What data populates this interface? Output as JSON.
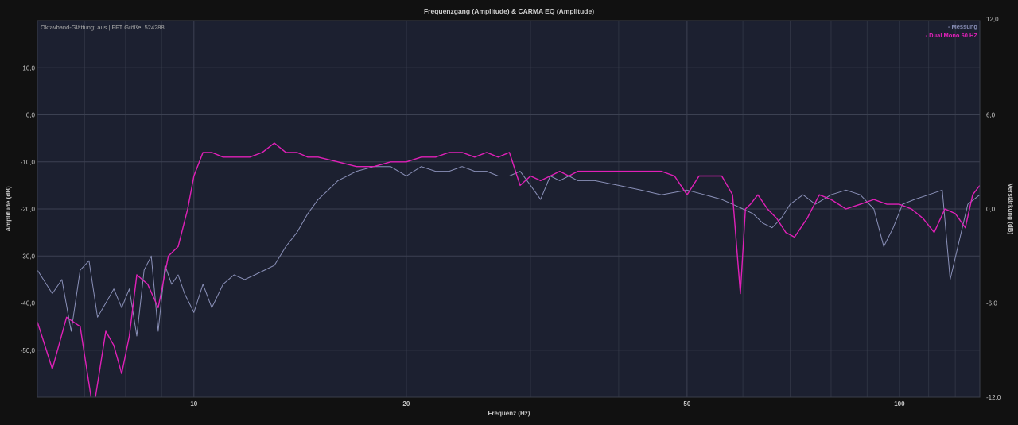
{
  "chart_data": {
    "type": "line",
    "title": "Frequenzgang (Amplitude) & CARMA EQ (Amplitude)",
    "info": "Oktavband-Glättung: aus | FFT Größe: 524288",
    "xlabel": "Frequenz (Hz)",
    "ylabel": "Amplitude (dB)",
    "y2label": "Verstärkung (dB)",
    "xscale": "log",
    "xlim": [
      6,
      130
    ],
    "ylim": [
      -60,
      20
    ],
    "y2lim": [
      -12,
      12
    ],
    "grid": true,
    "legend_position": "top-right",
    "xticks": [
      {
        "value": 10,
        "label": "10"
      },
      {
        "value": 20,
        "label": "20"
      },
      {
        "value": 50,
        "label": "50"
      },
      {
        "value": 100,
        "label": "100"
      }
    ],
    "yticks": [
      {
        "value": 10,
        "label": "10,0"
      },
      {
        "value": 0,
        "label": "0,0"
      },
      {
        "value": -10,
        "label": "-10,0"
      },
      {
        "value": -20,
        "label": "-20,0"
      },
      {
        "value": -30,
        "label": "-30,0"
      },
      {
        "value": -40,
        "label": "-40,0"
      },
      {
        "value": -50,
        "label": "-50,0"
      }
    ],
    "y2ticks": [
      {
        "value": 12,
        "label": "12,0"
      },
      {
        "value": 6,
        "label": "6,0"
      },
      {
        "value": 0,
        "label": "0,0"
      },
      {
        "value": -6,
        "label": "-6,0"
      },
      {
        "value": -12,
        "label": "-12,0"
      }
    ],
    "series": [
      {
        "name": "- Messung",
        "color": "#8a90b8",
        "x": [
          6.0,
          6.3,
          6.5,
          6.7,
          6.9,
          7.1,
          7.3,
          7.5,
          7.7,
          7.9,
          8.1,
          8.3,
          8.5,
          8.7,
          8.9,
          9.1,
          9.3,
          9.5,
          9.7,
          10.0,
          10.3,
          10.6,
          11.0,
          11.4,
          11.8,
          12.2,
          12.6,
          13.0,
          13.5,
          14.0,
          14.5,
          15.0,
          15.5,
          16.0,
          17.0,
          18.0,
          19.0,
          20.0,
          21.0,
          22.0,
          23.0,
          24.0,
          25.0,
          26.0,
          27.0,
          28.0,
          29.0,
          30.0,
          31.0,
          32.0,
          33.0,
          34.0,
          35.0,
          37.0,
          40.0,
          43.0,
          46.0,
          50.0,
          53.0,
          56.0,
          58.0,
          60.0,
          62.0,
          64.0,
          66.0,
          68.0,
          70.0,
          73.0,
          76.0,
          80.0,
          84.0,
          88.0,
          92.0,
          95.0,
          98.0,
          101.0,
          105.0,
          110.0,
          115.0,
          118.0,
          121.0,
          125.0,
          130.0
        ],
        "y": [
          -33,
          -38,
          -35,
          -46,
          -33,
          -31,
          -43,
          -40,
          -37,
          -41,
          -37,
          -47,
          -33,
          -30,
          -46,
          -32,
          -36,
          -34,
          -38,
          -42,
          -36,
          -41,
          -36,
          -34,
          -35,
          -34,
          -33,
          -32,
          -28,
          -25,
          -21,
          -18,
          -16,
          -14,
          -12,
          -11,
          -11,
          -13,
          -11,
          -12,
          -12,
          -11,
          -12,
          -12,
          -13,
          -13,
          -12,
          -15,
          -18,
          -13,
          -14,
          -13,
          -14,
          -14,
          -15,
          -16,
          -17,
          -16,
          -17,
          -18,
          -19,
          -20,
          -21,
          -23,
          -24,
          -22,
          -19,
          -17,
          -19,
          -17,
          -16,
          -17,
          -20,
          -28,
          -24,
          -19,
          -18,
          -17,
          -16,
          -35,
          -28,
          -19,
          -17
        ]
      },
      {
        "name": "- Dual Mono 60 HZ",
        "color": "#e020b8",
        "x": [
          6.0,
          6.3,
          6.6,
          6.9,
          7.2,
          7.5,
          7.7,
          7.9,
          8.1,
          8.3,
          8.6,
          8.9,
          9.2,
          9.5,
          9.8,
          10.0,
          10.3,
          10.6,
          11.0,
          11.5,
          12.0,
          12.5,
          13.0,
          13.5,
          14.0,
          14.5,
          15.0,
          16.0,
          17.0,
          18.0,
          19.0,
          20.0,
          21.0,
          22.0,
          23.0,
          24.0,
          25.0,
          26.0,
          27.0,
          28.0,
          29.0,
          30.0,
          31.0,
          32.0,
          33.0,
          34.0,
          35.0,
          37.0,
          40.0,
          43.0,
          46.0,
          48.0,
          50.0,
          52.0,
          54.0,
          56.0,
          58.0,
          59.5,
          60.5,
          61.5,
          63.0,
          65.0,
          67.0,
          69.0,
          71.0,
          74.0,
          77.0,
          80.0,
          84.0,
          88.0,
          92.0,
          96.0,
          100.0,
          104.0,
          108.0,
          112.0,
          116.0,
          120.0,
          124.0,
          127.0,
          130.0
        ],
        "y": [
          -44,
          -54,
          -43,
          -45,
          -63,
          -46,
          -49,
          -55,
          -47,
          -34,
          -36,
          -41,
          -30,
          -28,
          -20,
          -13,
          -8,
          -8,
          -9,
          -9,
          -9,
          -8,
          -6,
          -8,
          -8,
          -9,
          -9,
          -10,
          -11,
          -11,
          -10,
          -10,
          -9,
          -9,
          -8,
          -8,
          -9,
          -8,
          -9,
          -8,
          -15,
          -13,
          -14,
          -13,
          -12,
          -13,
          -12,
          -12,
          -12,
          -12,
          -12,
          -13,
          -17,
          -13,
          -13,
          -13,
          -17,
          -38,
          -20,
          -19,
          -17,
          -20,
          -22,
          -25,
          -26,
          -22,
          -17,
          -18,
          -20,
          -19,
          -18,
          -19,
          -19,
          -20,
          -22,
          -25,
          -20,
          -21,
          -24,
          -17,
          -15
        ]
      }
    ]
  }
}
